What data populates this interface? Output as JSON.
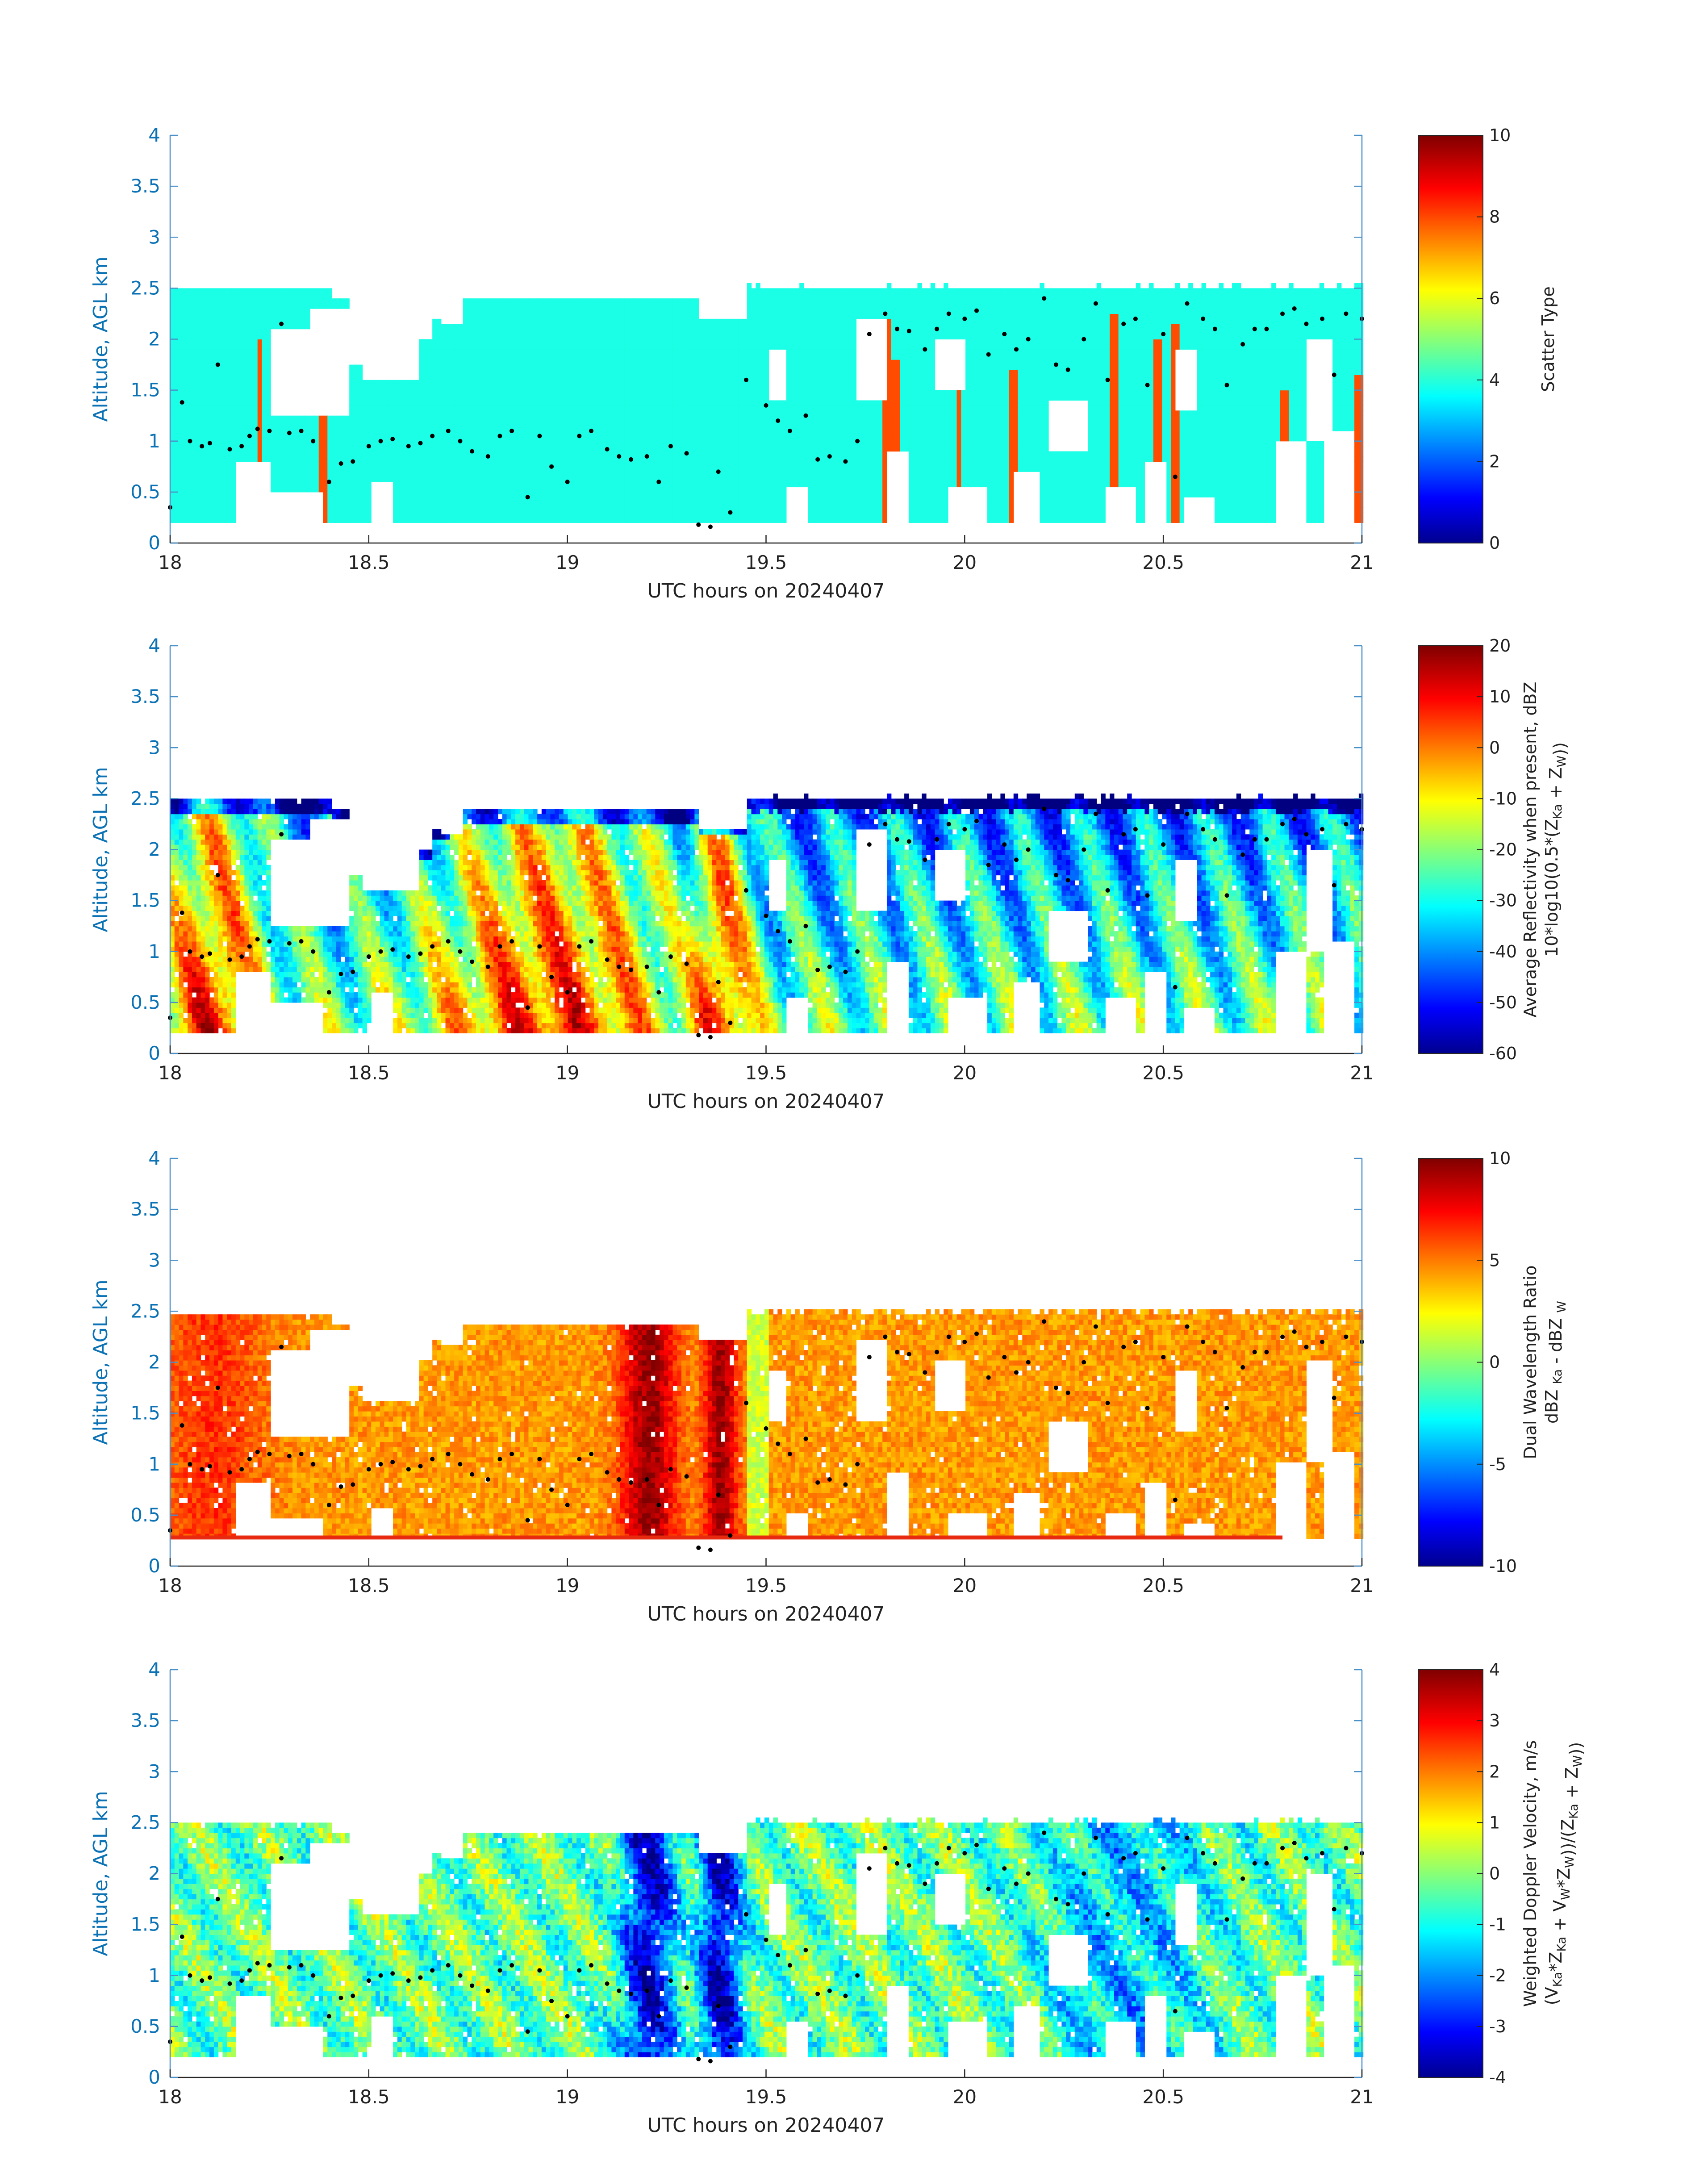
{
  "figure": {
    "panels": [
      {
        "id": "scatter",
        "xlabel": "UTC hours on 20240407",
        "ylabel": "Altitude, AGL km",
        "colorbar": {
          "lines": [
            [
              {
                "t": "Scatter Type"
              }
            ]
          ],
          "ticks": [
            "0",
            "2",
            "4",
            "6",
            "8",
            "10"
          ]
        }
      },
      {
        "id": "reflectivity",
        "xlabel": "UTC hours on 20240407",
        "ylabel": "Altitude, AGL km",
        "colorbar": {
          "lines": [
            [
              {
                "t": "Average Reflectivity when present, dBZ"
              }
            ],
            [
              {
                "t": "10*log10(0.5*(Z"
              },
              {
                "t": "Ka",
                "sub": true
              },
              {
                "t": " + Z"
              },
              {
                "t": "W",
                "sub": true
              },
              {
                "t": "))"
              }
            ]
          ],
          "ticks": [
            "-60",
            "-50",
            "-40",
            "-30",
            "-20",
            "-10",
            "0",
            "10",
            "20"
          ]
        }
      },
      {
        "id": "dwr",
        "xlabel": "UTC hours on 20240407",
        "ylabel": "Altitude, AGL km",
        "colorbar": {
          "lines": [
            [
              {
                "t": "Dual Wavelength Ratio"
              }
            ],
            [
              {
                "t": "dBZ "
              },
              {
                "t": "Ka",
                "sub": true
              },
              {
                "t": " - dBZ "
              },
              {
                "t": "W",
                "sub": true
              }
            ]
          ],
          "ticks": [
            "-10",
            "-5",
            "0",
            "5",
            "10"
          ]
        }
      },
      {
        "id": "velocity",
        "xlabel": "UTC hours on 20240407",
        "ylabel": "Altitude, AGL km",
        "colorbar": {
          "lines": [
            [
              {
                "t": "Weighted Doppler Velocity, m/s"
              }
            ],
            [
              {
                "t": "(V"
              },
              {
                "t": "Ka",
                "sub": true
              },
              {
                "t": "*Z"
              },
              {
                "t": "Ka",
                "sub": true
              },
              {
                "t": " + V"
              },
              {
                "t": "W",
                "sub": true
              },
              {
                "t": "*Z"
              },
              {
                "t": "W",
                "sub": true
              },
              {
                "t": "))/(Z"
              },
              {
                "t": "Ka",
                "sub": true
              },
              {
                "t": " + Z"
              },
              {
                "t": "W",
                "sub": true
              },
              {
                "t": "))"
              }
            ]
          ],
          "ticks": [
            "-4",
            "-3",
            "-2",
            "-1",
            "0",
            "1",
            "2",
            "3",
            "4"
          ]
        }
      }
    ]
  },
  "chart_data": [
    {
      "type": "heatmap",
      "xlabel": "UTC hours on 20240407",
      "ylabel": "Altitude, AGL km",
      "xlim": [
        18,
        21
      ],
      "ylim": [
        0,
        4
      ],
      "xticks": [
        "18",
        "18.5",
        "19",
        "19.5",
        "20",
        "20.5",
        "21"
      ],
      "yticks": [
        "0",
        "0.5",
        "1",
        "1.5",
        "2",
        "2.5",
        "3",
        "3.5",
        "4"
      ],
      "colorbar_label": "Scatter Type",
      "clim": [
        0,
        10
      ],
      "colormap": "jet",
      "echo_top_km": 2.45,
      "echo_base_km": 0.2,
      "dominant_value": 4,
      "secondary_value": 8,
      "secondary_columns_hours": [
        18.22,
        18.38,
        19.8,
        19.82,
        19.98,
        20.12,
        20.37,
        20.48,
        20.52,
        20.8,
        20.99
      ]
    },
    {
      "type": "heatmap",
      "xlabel": "UTC hours on 20240407",
      "ylabel": "Altitude, AGL km",
      "xlim": [
        18,
        21
      ],
      "ylim": [
        0,
        4
      ],
      "xticks": [
        "18",
        "18.5",
        "19",
        "19.5",
        "20",
        "20.5",
        "21"
      ],
      "yticks": [
        "0",
        "0.5",
        "1",
        "1.5",
        "2",
        "2.5",
        "3",
        "3.5",
        "4"
      ],
      "colorbar_label": "Average Reflectivity when present, dBZ 10*log10(0.5*(ZKa + ZW))",
      "clim": [
        -60,
        20
      ],
      "colormap": "jet",
      "echo_top_km": 2.5,
      "echo_base_km": 0.2,
      "max_core_hours": [
        18.8,
        19.1,
        19.35
      ]
    },
    {
      "type": "heatmap",
      "xlabel": "UTC hours on 20240407",
      "ylabel": "Altitude, AGL km",
      "xlim": [
        18,
        21
      ],
      "ylim": [
        0,
        4
      ],
      "xticks": [
        "18",
        "18.5",
        "19",
        "19.5",
        "20",
        "20.5",
        "21"
      ],
      "yticks": [
        "0",
        "0.5",
        "1",
        "1.5",
        "2",
        "2.5",
        "3",
        "3.5",
        "4"
      ],
      "colorbar_label": "Dual Wavelength Ratio dBZ Ka - dBZ W",
      "clim": [
        -10,
        10
      ],
      "colormap": "jet",
      "echo_top_km": 2.45,
      "echo_base_km": 0.27,
      "max_core_hours": [
        19.2,
        19.38
      ]
    },
    {
      "type": "heatmap",
      "xlabel": "UTC hours on 20240407",
      "ylabel": "Altitude, AGL km",
      "xlim": [
        18,
        21
      ],
      "ylim": [
        0,
        4
      ],
      "xticks": [
        "18",
        "18.5",
        "19",
        "19.5",
        "20",
        "20.5",
        "21"
      ],
      "yticks": [
        "0",
        "0.5",
        "1",
        "1.5",
        "2",
        "2.5",
        "3",
        "3.5",
        "4"
      ],
      "colorbar_label": "Weighted Doppler Velocity, m/s (VKa*ZKa + VW*ZW))/(ZKa + ZW))",
      "clim": [
        -4,
        4
      ],
      "colormap": "jet",
      "echo_top_km": 2.5,
      "echo_base_km": 0.2,
      "min_core_hours": [
        19.2,
        19.38
      ]
    },
    {
      "type": "scatter",
      "description_of_series": "black dot overlay present in all four panels",
      "x": [
        18.0,
        18.03,
        18.05,
        18.08,
        18.1,
        18.12,
        18.15,
        18.18,
        18.2,
        18.22,
        18.25,
        18.28,
        18.3,
        18.33,
        18.36,
        18.4,
        18.43,
        18.46,
        18.5,
        18.53,
        18.56,
        18.6,
        18.63,
        18.66,
        18.7,
        18.73,
        18.76,
        18.8,
        18.83,
        18.86,
        18.9,
        18.93,
        18.96,
        19.0,
        19.03,
        19.06,
        19.1,
        19.13,
        19.16,
        19.2,
        19.23,
        19.26,
        19.3,
        19.33,
        19.36,
        19.38,
        19.41,
        19.45,
        19.5,
        19.53,
        19.56,
        19.6,
        19.63,
        19.66,
        19.7,
        19.73,
        19.76,
        19.8,
        19.83,
        19.86,
        19.9,
        19.93,
        19.96,
        20.0,
        20.03,
        20.06,
        20.1,
        20.13,
        20.16,
        20.2,
        20.23,
        20.26,
        20.3,
        20.33,
        20.36,
        20.4,
        20.43,
        20.46,
        20.5,
        20.53,
        20.56,
        20.6,
        20.63,
        20.66,
        20.7,
        20.73,
        20.76,
        20.8,
        20.83,
        20.86,
        20.9,
        20.93,
        20.96,
        21.0
      ],
      "y": [
        0.35,
        1.38,
        1.0,
        0.95,
        0.98,
        1.75,
        0.92,
        0.95,
        1.05,
        1.12,
        1.1,
        2.15,
        1.08,
        1.1,
        1.0,
        0.6,
        0.78,
        0.8,
        0.95,
        1.0,
        1.02,
        0.95,
        0.98,
        1.05,
        1.1,
        1.0,
        0.9,
        0.85,
        1.05,
        1.1,
        0.45,
        1.05,
        0.75,
        0.6,
        1.05,
        1.1,
        0.92,
        0.85,
        0.82,
        0.85,
        0.6,
        0.95,
        0.88,
        0.18,
        0.16,
        0.7,
        0.3,
        1.6,
        1.35,
        1.2,
        1.1,
        1.25,
        0.82,
        0.85,
        0.8,
        1.0,
        2.05,
        2.25,
        2.1,
        2.08,
        1.9,
        2.1,
        2.25,
        2.2,
        2.28,
        1.85,
        2.05,
        1.9,
        2.0,
        2.4,
        1.75,
        1.7,
        2.0,
        2.35,
        1.6,
        2.15,
        2.2,
        1.55,
        2.05,
        0.65,
        2.35,
        2.2,
        2.1,
        1.55,
        1.95,
        2.1,
        2.1,
        2.25,
        2.3,
        2.15,
        2.2,
        1.65,
        2.25,
        2.2
      ]
    }
  ]
}
